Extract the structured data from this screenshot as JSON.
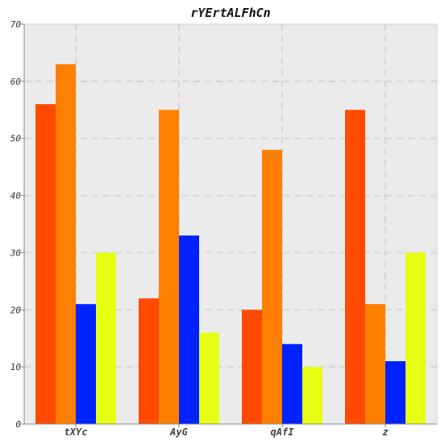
{
  "chart_data": {
    "type": "bar",
    "title": "rYErtALFhCn",
    "xlabel": "",
    "ylabel": "",
    "categories": [
      "tXYc",
      "AyG",
      "qAfI",
      "z"
    ],
    "series": [
      {
        "values": [
          56,
          22,
          20,
          55
        ],
        "color": "#ff4a00"
      },
      {
        "values": [
          63,
          55,
          48,
          21
        ],
        "color": "#ff7f00"
      },
      {
        "values": [
          21,
          33,
          14,
          11
        ],
        "color": "#0022ff"
      },
      {
        "values": [
          30,
          16,
          10,
          30
        ],
        "color": "#e6ff12"
      }
    ],
    "ylim": [
      0,
      70
    ],
    "yticks": [
      0,
      10,
      20,
      30,
      40,
      50,
      60,
      70
    ],
    "grid": true,
    "plot_background": "#ebebeb"
  }
}
